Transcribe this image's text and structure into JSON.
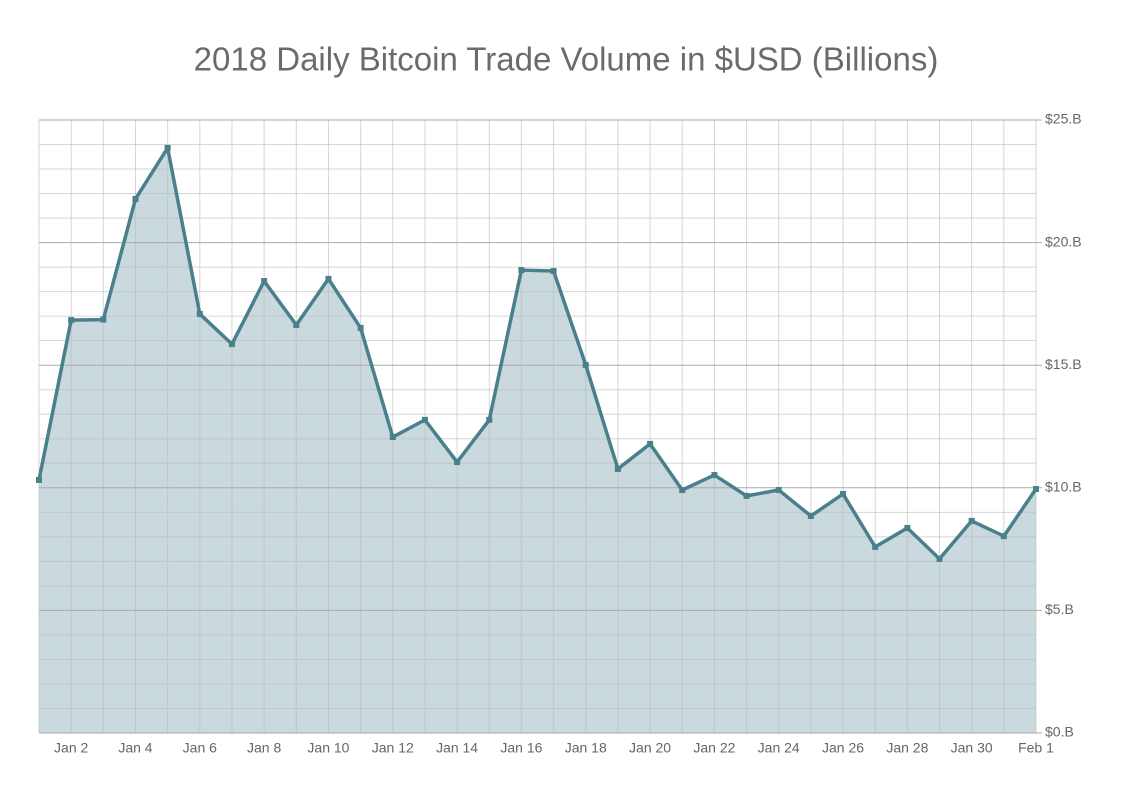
{
  "chart_data": {
    "type": "area",
    "title": "2018 Daily Bitcoin Trade Volume in $USD (Billions)",
    "categories": [
      null,
      "Jan 2",
      null,
      "Jan 4",
      null,
      "Jan 6",
      null,
      "Jan 8",
      null,
      "Jan 10",
      null,
      "Jan 12",
      null,
      "Jan 14",
      null,
      "Jan 16",
      null,
      "Jan 18",
      null,
      "Jan 20",
      null,
      "Jan 22",
      null,
      "Jan 24",
      null,
      "Jan 26",
      null,
      "Jan 28",
      null,
      "Jan 30",
      null,
      "Feb 1"
    ],
    "values": [
      10.32,
      16.84,
      16.86,
      21.78,
      23.86,
      17.09,
      15.86,
      18.43,
      16.64,
      18.52,
      16.52,
      12.07,
      12.77,
      11.05,
      12.77,
      18.88,
      18.84,
      15.01,
      10.77,
      11.79,
      9.91,
      10.52,
      9.67,
      9.91,
      8.85,
      9.75,
      7.59,
      8.36,
      7.1,
      8.65,
      8.03,
      9.95
    ],
    "color": "#4a7f8c",
    "fill_color": "#c9d9dd",
    "ylim": [
      0,
      25
    ],
    "yticks": [
      {
        "value": 0,
        "label": "$0.B"
      },
      {
        "value": 5,
        "label": "$5.B"
      },
      {
        "value": 10,
        "label": "$10.B"
      },
      {
        "value": 15,
        "label": "$15.B"
      },
      {
        "value": 20,
        "label": "$20.B"
      },
      {
        "value": 25,
        "label": "$25.B"
      }
    ],
    "minor_yticks": [
      1,
      2,
      3,
      4,
      6,
      7,
      8,
      9,
      11,
      12,
      13,
      14,
      16,
      17,
      18,
      19,
      21,
      22,
      23,
      24
    ],
    "grid": true
  }
}
